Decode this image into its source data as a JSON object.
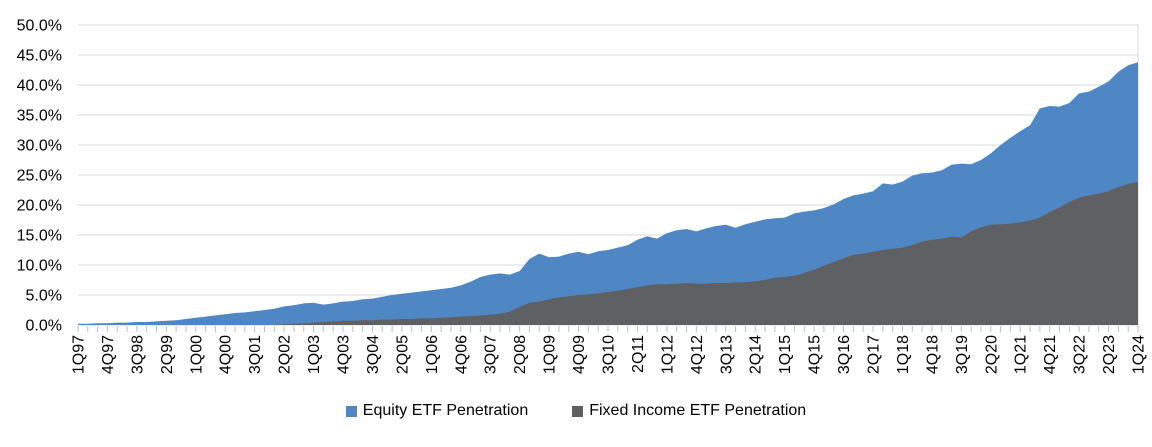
{
  "chart_data": {
    "type": "area",
    "mode": "overlapping",
    "grid": "horizontal",
    "legend_position": "bottom",
    "background_color": "#FFFFFF",
    "gridline_color": "#D9D9D9",
    "tick_color": "#BFBFBF",
    "text_color": "#000000",
    "y_axis": {
      "min": 0,
      "max": 50,
      "tick_step": 5,
      "ticks": [
        "0.0%",
        "5.0%",
        "10.0%",
        "15.0%",
        "20.0%",
        "25.0%",
        "30.0%",
        "35.0%",
        "40.0%",
        "45.0%",
        "50.0%"
      ]
    },
    "x_axis": {
      "unit": "quarter",
      "first_point": "1Q97",
      "last_point": "1Q24",
      "label_every_n_points": 3,
      "tick_labels": [
        "1Q97",
        "4Q97",
        "3Q98",
        "2Q99",
        "1Q00",
        "4Q00",
        "3Q01",
        "2Q02",
        "1Q03",
        "4Q03",
        "3Q04",
        "2Q05",
        "1Q06",
        "4Q06",
        "3Q07",
        "2Q08",
        "1Q09",
        "4Q09",
        "3Q10",
        "2Q11",
        "1Q12",
        "4Q12",
        "3Q13",
        "2Q14",
        "1Q15",
        "4Q15",
        "3Q16",
        "2Q17",
        "1Q18",
        "4Q18",
        "3Q19",
        "2Q20",
        "1Q21",
        "4Q21",
        "3Q22",
        "2Q23",
        "1Q24"
      ]
    },
    "series": [
      {
        "name": "Equity ETF Penetration",
        "color": "#4E87C3",
        "values": [
          0.2,
          0.2,
          0.3,
          0.3,
          0.4,
          0.4,
          0.5,
          0.5,
          0.6,
          0.7,
          0.8,
          1.0,
          1.2,
          1.4,
          1.6,
          1.8,
          2.0,
          2.1,
          2.3,
          2.5,
          2.7,
          3.1,
          3.3,
          3.6,
          3.7,
          3.4,
          3.6,
          3.9,
          4.0,
          4.3,
          4.4,
          4.7,
          5.0,
          5.2,
          5.4,
          5.6,
          5.8,
          6.0,
          6.2,
          6.6,
          7.2,
          8.0,
          8.4,
          8.6,
          8.4,
          9.0,
          11.0,
          11.9,
          11.3,
          11.4,
          11.9,
          12.2,
          11.8,
          12.3,
          12.5,
          12.9,
          13.3,
          14.2,
          14.8,
          14.4,
          15.3,
          15.8,
          16.0,
          15.6,
          16.1,
          16.5,
          16.7,
          16.2,
          16.8,
          17.2,
          17.6,
          17.8,
          17.9,
          18.6,
          18.9,
          19.1,
          19.5,
          20.1,
          21.0,
          21.6,
          21.9,
          22.3,
          23.6,
          23.4,
          23.9,
          24.9,
          25.3,
          25.4,
          25.8,
          26.7,
          26.9,
          26.8,
          27.5,
          28.6,
          30.0,
          31.2,
          32.3,
          33.3,
          36.1,
          36.5,
          36.4,
          37.0,
          38.6,
          38.9,
          39.7,
          40.6,
          42.2,
          43.3,
          43.8
        ]
      },
      {
        "name": "Fixed Income ETF Penetration",
        "color": "#5E6064",
        "values": [
          0,
          0,
          0,
          0,
          0,
          0,
          0,
          0,
          0,
          0,
          0,
          0,
          0,
          0,
          0,
          0,
          0,
          0,
          0,
          0,
          0,
          0.1,
          0.2,
          0.3,
          0.4,
          0.5,
          0.6,
          0.7,
          0.7,
          0.8,
          0.8,
          0.9,
          0.9,
          1.0,
          1.0,
          1.1,
          1.1,
          1.2,
          1.3,
          1.4,
          1.5,
          1.6,
          1.7,
          1.9,
          2.2,
          3.0,
          3.7,
          3.9,
          4.3,
          4.6,
          4.8,
          5.0,
          5.1,
          5.3,
          5.5,
          5.7,
          6.0,
          6.3,
          6.6,
          6.8,
          6.8,
          6.9,
          7.0,
          6.9,
          6.9,
          7.0,
          7.0,
          7.1,
          7.1,
          7.3,
          7.5,
          7.9,
          8.0,
          8.2,
          8.7,
          9.2,
          9.9,
          10.5,
          11.1,
          11.7,
          11.9,
          12.2,
          12.5,
          12.7,
          12.9,
          13.3,
          13.9,
          14.2,
          14.4,
          14.7,
          14.6,
          15.6,
          16.3,
          16.7,
          16.8,
          16.9,
          17.1,
          17.4,
          17.9,
          18.8,
          19.6,
          20.5,
          21.2,
          21.6,
          21.9,
          22.3,
          23.0,
          23.5,
          23.8
        ]
      }
    ]
  },
  "legend": {
    "items": [
      {
        "label": "Equity ETF Penetration",
        "color": "#4E87C3"
      },
      {
        "label": "Fixed Income ETF Penetration",
        "color": "#5E6064"
      }
    ]
  }
}
